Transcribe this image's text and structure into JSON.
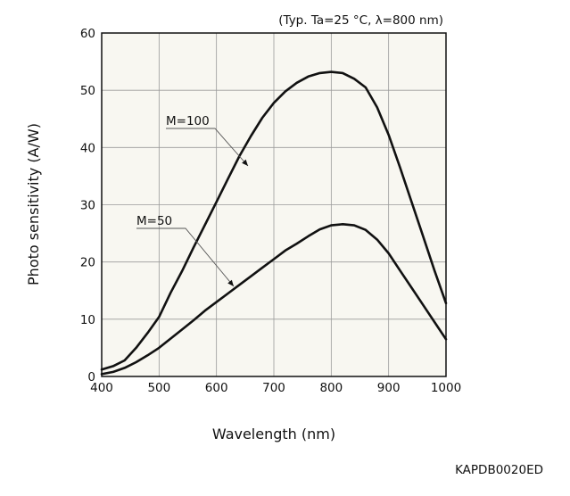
{
  "chart_data": {
    "type": "line",
    "condition_note": "(Typ. Ta=25 °C, λ=800 nm)",
    "xlabel": "Wavelength (nm)",
    "ylabel": "Photo sensitivity (A/W)",
    "xlim": [
      400,
      1000
    ],
    "ylim": [
      0,
      60
    ],
    "x_ticks": [
      400,
      500,
      600,
      700,
      800,
      900,
      1000
    ],
    "y_ticks": [
      0,
      10,
      20,
      30,
      40,
      50,
      60
    ],
    "grid": true,
    "series": [
      {
        "name": "M=100",
        "label_anchor": [
          625,
          45
        ],
        "points": [
          [
            400,
            1.2
          ],
          [
            420,
            1.8
          ],
          [
            440,
            2.8
          ],
          [
            460,
            5
          ],
          [
            480,
            7.6
          ],
          [
            500,
            10.4
          ],
          [
            520,
            14.6
          ],
          [
            540,
            18.4
          ],
          [
            560,
            22.5
          ],
          [
            580,
            26.5
          ],
          [
            600,
            30.5
          ],
          [
            620,
            34.5
          ],
          [
            640,
            38.5
          ],
          [
            660,
            42
          ],
          [
            680,
            45.2
          ],
          [
            700,
            47.8
          ],
          [
            720,
            49.8
          ],
          [
            740,
            51.3
          ],
          [
            760,
            52.4
          ],
          [
            780,
            53
          ],
          [
            800,
            53.2
          ],
          [
            820,
            53
          ],
          [
            840,
            52
          ],
          [
            860,
            50.5
          ],
          [
            880,
            47
          ],
          [
            900,
            42.2
          ],
          [
            920,
            36.5
          ],
          [
            940,
            30.5
          ],
          [
            960,
            24.5
          ],
          [
            980,
            18.5
          ],
          [
            1000,
            12.8
          ]
        ]
      },
      {
        "name": "M=50",
        "label_anchor": [
          625,
          29
        ],
        "points": [
          [
            400,
            0.4
          ],
          [
            420,
            0.8
          ],
          [
            440,
            1.5
          ],
          [
            460,
            2.5
          ],
          [
            480,
            3.7
          ],
          [
            500,
            5
          ],
          [
            520,
            6.6
          ],
          [
            540,
            8.2
          ],
          [
            560,
            9.8
          ],
          [
            580,
            11.5
          ],
          [
            600,
            13
          ],
          [
            620,
            14.5
          ],
          [
            640,
            16
          ],
          [
            660,
            17.5
          ],
          [
            680,
            19
          ],
          [
            700,
            20.5
          ],
          [
            720,
            22
          ],
          [
            740,
            23.2
          ],
          [
            760,
            24.5
          ],
          [
            780,
            25.7
          ],
          [
            800,
            26.4
          ],
          [
            820,
            26.6
          ],
          [
            840,
            26.4
          ],
          [
            860,
            25.6
          ],
          [
            880,
            23.9
          ],
          [
            900,
            21.5
          ],
          [
            920,
            18.5
          ],
          [
            940,
            15.5
          ],
          [
            960,
            12.5
          ],
          [
            980,
            9.5
          ],
          [
            1000,
            6.5
          ]
        ]
      }
    ]
  },
  "figure_code": "KAPDB0020ED"
}
